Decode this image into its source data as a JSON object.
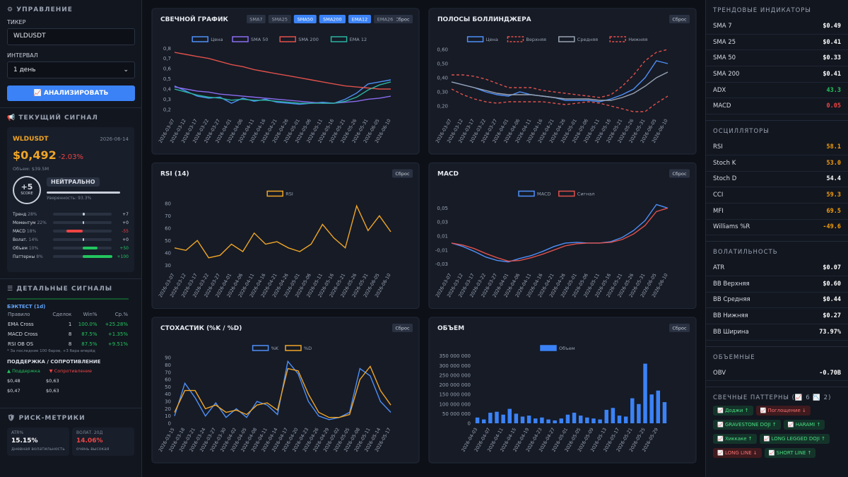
{
  "sidebar": {
    "controls": {
      "title": "УПРАВЛЕНИЕ",
      "ticker_label": "ТИКЕР",
      "ticker": "WLDUSDT",
      "interval_label": "ИНТЕРВАЛ",
      "interval": "1 день",
      "analyze": "АНАЛИЗИРОВАТЬ"
    },
    "signal": {
      "title": "ТЕКУЩИЙ СИГНАЛ",
      "symbol": "WLDUSDT",
      "date": "2026-06-14",
      "price": "$0,492",
      "change": "-2.03%",
      "volume": "Объем: $39.5M",
      "score": "+5",
      "score_label": "SCORE",
      "verdict": "НЕЙТРАЛЬНО",
      "confidence": "Уверенность: 93.3%",
      "factors": [
        {
          "name": "Тренд",
          "weight": "28%",
          "value": 7,
          "value_label": "+7"
        },
        {
          "name": "Моментум",
          "weight": "22%",
          "value": 0,
          "value_label": "+0"
        },
        {
          "name": "MACD",
          "weight": "18%",
          "value": -55
        },
        {
          "name": "Волат.",
          "weight": "14%",
          "value": 0,
          "value_label": "+0"
        },
        {
          "name": "Объем",
          "weight": "10%",
          "value": 50,
          "value_label": "+50"
        },
        {
          "name": "Паттерны",
          "weight": "8%",
          "value": 100,
          "value_label": "+100"
        }
      ]
    },
    "details": {
      "title": "ДЕТАЛЬНЫЕ СИГНАЛЫ",
      "backtest_title": "БЭКТЕСТ (1d)",
      "headers": [
        "Правило",
        "Сделок",
        "Win%",
        "Ср.%"
      ],
      "rows": [
        [
          "EMA Cross",
          "1",
          "100.0%",
          "+25.28%"
        ],
        [
          "MACD Cross",
          "8",
          "87.5%",
          "+1.35%"
        ],
        [
          "RSI OB OS",
          "8",
          "87.5%",
          "+9.51%"
        ]
      ],
      "note": "* За последние 100 баров, +3 бара вперёд",
      "sr_title": "ПОДДЕРЖКА / СОПРОТИВЛЕНИЕ",
      "support": "Поддержка",
      "resistance": "Сопротивление",
      "levels": [
        [
          "$0,48",
          "$0,63"
        ],
        [
          "$0,47",
          "$0,63"
        ]
      ]
    },
    "risk": {
      "title": "РИСК-МЕТРИКИ",
      "cards": [
        {
          "label": "ATR%",
          "value": "15.15%",
          "note": "дневная волатильность"
        },
        {
          "label": "ВОЛАТ. 20Д",
          "value": "14.06%",
          "note": "очень высокая"
        }
      ]
    }
  },
  "chart_data": [
    {
      "type": "line",
      "title": "СВЕЧНОЙ ГРАФИК",
      "reset": "Сброс",
      "toggles": [
        {
          "label": "SMA7",
          "active": false
        },
        {
          "label": "SMA25",
          "active": false
        },
        {
          "label": "SMA50",
          "active": true
        },
        {
          "label": "SMA200",
          "active": true
        },
        {
          "label": "EMA12",
          "active": true
        },
        {
          "label": "EMA26",
          "active": false
        }
      ],
      "categories": [
        "2026-03-07",
        "2026-03-12",
        "2026-03-17",
        "2026-03-22",
        "2026-03-27",
        "2026-04-01",
        "2026-04-06",
        "2026-04-11",
        "2026-04-16",
        "2026-04-21",
        "2026-04-26",
        "2026-05-01",
        "2026-05-06",
        "2026-05-11",
        "2026-05-16",
        "2026-05-21",
        "2026-05-26",
        "2026-05-31",
        "2026-06-05",
        "2026-06-10"
      ],
      "series": [
        {
          "name": "Цена",
          "color": "#4f8ff7",
          "values": [
            0.43,
            0.38,
            0.33,
            0.31,
            0.32,
            0.26,
            0.31,
            0.28,
            0.3,
            0.27,
            0.26,
            0.25,
            0.26,
            0.27,
            0.26,
            0.3,
            0.36,
            0.45,
            0.47,
            0.49
          ]
        },
        {
          "name": "SMA 50",
          "color": "#8b6cf0",
          "values": [
            0.42,
            0.4,
            0.38,
            0.37,
            0.35,
            0.34,
            0.33,
            0.32,
            0.31,
            0.3,
            0.29,
            0.28,
            0.27,
            0.26,
            0.26,
            0.27,
            0.28,
            0.3,
            0.31,
            0.33
          ]
        },
        {
          "name": "SMA 200",
          "color": "#e0504a",
          "values": [
            0.76,
            0.74,
            0.72,
            0.7,
            0.67,
            0.64,
            0.62,
            0.59,
            0.57,
            0.55,
            0.53,
            0.51,
            0.49,
            0.47,
            0.45,
            0.43,
            0.42,
            0.41,
            0.4,
            0.4
          ]
        },
        {
          "name": "EMA 12",
          "color": "#2bb3a0",
          "values": [
            0.4,
            0.37,
            0.34,
            0.32,
            0.31,
            0.29,
            0.3,
            0.29,
            0.29,
            0.28,
            0.27,
            0.26,
            0.26,
            0.26,
            0.26,
            0.28,
            0.32,
            0.39,
            0.44,
            0.47
          ]
        }
      ],
      "ylim": [
        0.15,
        0.83
      ],
      "yticks": [
        {
          "value": 0.2,
          "label": "0,2"
        },
        {
          "value": 0.3,
          "label": "0,3"
        },
        {
          "value": 0.4,
          "label": "0,4"
        },
        {
          "value": 0.5,
          "label": "0,5"
        },
        {
          "value": 0.6,
          "label": "0,6"
        },
        {
          "value": 0.7,
          "label": "0,7"
        },
        {
          "value": 0.8,
          "label": "0,8"
        }
      ]
    },
    {
      "type": "line",
      "title": "ПОЛОСЫ БОЛЛИНДЖЕРА",
      "reset": "Сброс",
      "categories": [
        "2026-03-07",
        "2026-03-12",
        "2026-03-17",
        "2026-03-22",
        "2026-03-27",
        "2026-04-01",
        "2026-04-06",
        "2026-04-11",
        "2026-04-16",
        "2026-04-21",
        "2026-04-26",
        "2026-05-01",
        "2026-05-06",
        "2026-05-11",
        "2026-05-16",
        "2026-05-21",
        "2026-05-26",
        "2026-05-31",
        "2026-06-05",
        "2026-06-10"
      ],
      "series": [
        {
          "name": "Цена",
          "color": "#4f8ff7",
          "values": [
            0.37,
            0.35,
            0.33,
            0.3,
            0.28,
            0.27,
            0.3,
            0.28,
            0.27,
            0.26,
            0.24,
            0.24,
            0.24,
            0.23,
            0.25,
            0.28,
            0.32,
            0.4,
            0.52,
            0.5
          ]
        },
        {
          "name": "Верхняя",
          "color": "#e0504a",
          "dash": true,
          "values": [
            0.42,
            0.42,
            0.41,
            0.39,
            0.36,
            0.33,
            0.33,
            0.33,
            0.31,
            0.3,
            0.29,
            0.28,
            0.27,
            0.26,
            0.28,
            0.34,
            0.42,
            0.52,
            0.58,
            0.6
          ]
        },
        {
          "name": "Средняя",
          "color": "#9aa3b2",
          "values": [
            0.37,
            0.35,
            0.33,
            0.31,
            0.29,
            0.28,
            0.28,
            0.28,
            0.27,
            0.26,
            0.25,
            0.25,
            0.25,
            0.24,
            0.24,
            0.26,
            0.29,
            0.34,
            0.4,
            0.44
          ]
        },
        {
          "name": "Нижняя",
          "color": "#e0504a",
          "dash": true,
          "values": [
            0.32,
            0.28,
            0.25,
            0.23,
            0.22,
            0.23,
            0.23,
            0.23,
            0.23,
            0.22,
            0.21,
            0.22,
            0.23,
            0.22,
            0.2,
            0.18,
            0.16,
            0.16,
            0.22,
            0.27
          ]
        }
      ],
      "ylim": [
        0.14,
        0.63
      ],
      "yticks": [
        {
          "value": 0.2,
          "label": "0,20"
        },
        {
          "value": 0.3,
          "label": "0,30"
        },
        {
          "value": 0.4,
          "label": "0,40"
        },
        {
          "value": 0.5,
          "label": "0,50"
        },
        {
          "value": 0.6,
          "label": "0,60"
        }
      ]
    },
    {
      "type": "line",
      "title": "RSI (14)",
      "reset": "Сброс",
      "categories": [
        "2026-03-07",
        "2026-03-12",
        "2026-03-17",
        "2026-03-22",
        "2026-03-27",
        "2026-04-01",
        "2026-04-06",
        "2026-04-11",
        "2026-04-16",
        "2026-04-21",
        "2026-04-26",
        "2026-05-01",
        "2026-05-06",
        "2026-05-11",
        "2026-05-16",
        "2026-05-21",
        "2026-05-26",
        "2026-05-31",
        "2026-06-05",
        "2026-06-10"
      ],
      "series": [
        {
          "name": "RSI",
          "color": "#f0a526",
          "values": [
            44,
            42,
            50,
            36,
            38,
            47,
            41,
            56,
            47,
            49,
            44,
            41,
            47,
            63,
            52,
            44,
            78,
            58,
            70,
            57
          ]
        }
      ],
      "ylim": [
        27,
        83
      ],
      "yticks": [
        30,
        40,
        50,
        60,
        70,
        80
      ]
    },
    {
      "type": "line",
      "title": "MACD",
      "reset": "Сброс",
      "categories": [
        "2026-03-07",
        "2026-03-12",
        "2026-03-17",
        "2026-03-22",
        "2026-03-27",
        "2026-04-01",
        "2026-04-06",
        "2026-04-11",
        "2026-04-16",
        "2026-04-21",
        "2026-04-26",
        "2026-05-01",
        "2026-05-06",
        "2026-05-11",
        "2026-05-16",
        "2026-05-21",
        "2026-05-26",
        "2026-05-31",
        "2026-06-05",
        "2026-06-10"
      ],
      "series": [
        {
          "name": "MACD",
          "color": "#4f8ff7",
          "values": [
            0.0,
            -0.005,
            -0.012,
            -0.02,
            -0.025,
            -0.027,
            -0.022,
            -0.018,
            -0.012,
            -0.005,
            0.0,
            0.001,
            0.0,
            0.0,
            0.002,
            0.008,
            0.018,
            0.032,
            0.055,
            0.05
          ]
        },
        {
          "name": "Сигнал",
          "color": "#e0504a",
          "values": [
            0.0,
            -0.003,
            -0.008,
            -0.015,
            -0.021,
            -0.026,
            -0.025,
            -0.021,
            -0.016,
            -0.01,
            -0.004,
            -0.001,
            0.0,
            0.0,
            0.001,
            0.005,
            0.013,
            0.025,
            0.045,
            0.05
          ]
        }
      ],
      "ylim": [
        -0.037,
        0.062
      ],
      "yticks": [
        {
          "value": -0.03,
          "label": "-0,03"
        },
        {
          "value": -0.01,
          "label": "-0,01"
        },
        {
          "value": 0.01,
          "label": "0,01"
        },
        {
          "value": 0.03,
          "label": "0,03"
        },
        {
          "value": 0.05,
          "label": "0,05"
        }
      ]
    },
    {
      "type": "line",
      "title": "СТОХАСТИК (%K / %D)",
      "reset": "Сброс",
      "categories": [
        "2026-03-15",
        "2026-03-18",
        "2026-03-21",
        "2026-03-24",
        "2026-03-27",
        "2026-03-30",
        "2026-04-02",
        "2026-04-05",
        "2026-04-08",
        "2026-04-11",
        "2026-04-14",
        "2026-04-17",
        "2026-04-20",
        "2026-04-23",
        "2026-04-26",
        "2026-04-29",
        "2026-05-02",
        "2026-05-05",
        "2026-05-08",
        "2026-05-11",
        "2026-05-14",
        "2026-05-17"
      ],
      "series": [
        {
          "name": "%K",
          "color": "#4f8ff7",
          "values": [
            10,
            55,
            35,
            10,
            28,
            8,
            20,
            8,
            30,
            25,
            12,
            85,
            68,
            30,
            10,
            5,
            8,
            15,
            75,
            65,
            30,
            15
          ]
        },
        {
          "name": "%D",
          "color": "#f0a526",
          "values": [
            15,
            45,
            45,
            20,
            25,
            15,
            18,
            12,
            25,
            28,
            18,
            75,
            72,
            40,
            15,
            8,
            8,
            12,
            60,
            78,
            45,
            25
          ]
        }
      ],
      "ylim": [
        0,
        95
      ],
      "yticks": [
        0,
        10,
        20,
        30,
        40,
        50,
        60,
        70,
        80,
        90
      ]
    },
    {
      "type": "bar",
      "title": "ОБЪЕМ",
      "reset": "Сброс",
      "categories": [
        "2026-04-03",
        null,
        "2026-04-07",
        null,
        "2026-04-11",
        null,
        "2026-04-15",
        null,
        "2026-04-19",
        null,
        "2026-04-23",
        null,
        "2026-04-27",
        null,
        "2026-05-01",
        null,
        "2026-05-05",
        null,
        "2026-05-09",
        null,
        "2026-05-13",
        null,
        "2026-05-17",
        null,
        "2026-05-21",
        null,
        "2026-05-25",
        null,
        "2026-05-29",
        null
      ],
      "series": [
        {
          "name": "Объем",
          "color": "#3b82f6",
          "values": [
            30000000,
            20000000,
            55000000,
            60000000,
            45000000,
            75000000,
            50000000,
            35000000,
            40000000,
            25000000,
            30000000,
            20000000,
            15000000,
            25000000,
            45000000,
            55000000,
            40000000,
            30000000,
            25000000,
            20000000,
            70000000,
            80000000,
            40000000,
            35000000,
            130000000,
            100000000,
            310000000,
            150000000,
            170000000,
            110000000
          ]
        }
      ],
      "ylim": [
        0,
        360000000
      ],
      "yticks": [
        {
          "value": 0,
          "label": "0"
        },
        {
          "value": 50000000,
          "label": "50 000 000"
        },
        {
          "value": 100000000,
          "label": "100 000 000"
        },
        {
          "value": 150000000,
          "label": "150 000 000"
        },
        {
          "value": 200000000,
          "label": "200 000 000"
        },
        {
          "value": 250000000,
          "label": "250 000 000"
        },
        {
          "value": 300000000,
          "label": "300 000 000"
        },
        {
          "value": 350000000,
          "label": "350 000 000"
        }
      ]
    }
  ],
  "right_panel": {
    "trend": {
      "title": "ТРЕНДОВЫЕ ИНДИКАТОРЫ",
      "rows": [
        {
          "name": "SMA 7",
          "value": "$0.49",
          "color": "#ffffff"
        },
        {
          "name": "SMA 25",
          "value": "$0.41",
          "color": "#ffffff"
        },
        {
          "name": "SMA 50",
          "value": "$0.33",
          "color": "#ffffff"
        },
        {
          "name": "SMA 200",
          "value": "$0.41",
          "color": "#ffffff"
        },
        {
          "name": "ADX",
          "value": "43.3",
          "color": "#22c55e"
        },
        {
          "name": "MACD",
          "value": "0.05",
          "color": "#ef4444"
        }
      ]
    },
    "oscillators": {
      "title": "ОСЦИЛЛЯТОРЫ",
      "rows": [
        {
          "name": "RSI",
          "value": "58.1",
          "color": "#f59e0b"
        },
        {
          "name": "Stoch K",
          "value": "53.0",
          "color": "#f59e0b"
        },
        {
          "name": "Stoch D",
          "value": "54.4",
          "color": "#ffffff"
        },
        {
          "name": "CCI",
          "value": "59.3",
          "color": "#f59e0b"
        },
        {
          "name": "MFI",
          "value": "69.5",
          "color": "#f59e0b"
        },
        {
          "name": "Williams %R",
          "value": "-49.6",
          "color": "#f59e0b"
        }
      ]
    },
    "volatility": {
      "title": "ВОЛАТИЛЬНОСТЬ",
      "rows": [
        {
          "name": "ATR",
          "value": "$0.07",
          "color": "#ffffff"
        },
        {
          "name": "BB Верхняя",
          "value": "$0.60",
          "color": "#ffffff"
        },
        {
          "name": "BB Средняя",
          "value": "$0.44",
          "color": "#ffffff"
        },
        {
          "name": "BB Нижняя",
          "value": "$0.27",
          "color": "#ffffff"
        },
        {
          "name": "BB Ширина",
          "value": "73.97%",
          "color": "#ffffff"
        }
      ]
    },
    "volume": {
      "title": "ОБЪЕМНЫЕ",
      "rows": [
        {
          "name": "OBV",
          "value": "-0.70B",
          "color": "#ffffff"
        }
      ]
    },
    "patterns": {
      "title": "СВЕЧНЫЕ ПАТТЕРНЫ",
      "bull_count": "6",
      "bear_count": "2",
      "items": [
        {
          "label": "Доджи ↑",
          "bull": true
        },
        {
          "label": "Поглощение ↓",
          "bull": false
        },
        {
          "label": "GRAVESTONE DOJI ↑",
          "bull": true
        },
        {
          "label": "HARAMI ↑",
          "bull": true
        },
        {
          "label": "Хиккаке ↑",
          "bull": true
        },
        {
          "label": "LONG LEGGED DOJI ↑",
          "bull": true
        },
        {
          "label": "LONG LINE ↓",
          "bull": false
        },
        {
          "label": "SHORT LINE ↑",
          "bull": true
        }
      ]
    }
  }
}
